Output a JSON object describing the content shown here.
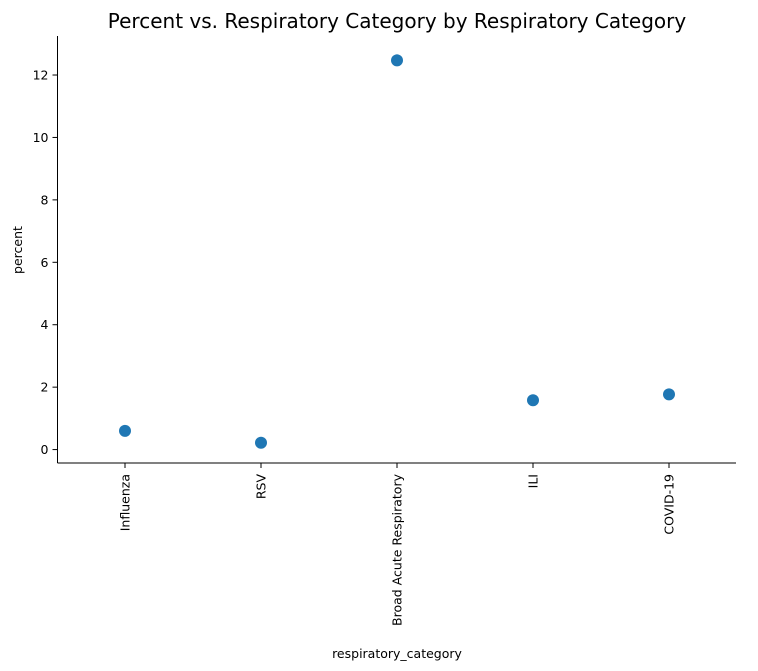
{
  "chart_data": {
    "type": "scatter",
    "title": "Percent vs. Respiratory Category by Respiratory Category",
    "xlabel": "respiratory_category",
    "ylabel": "percent",
    "categories": [
      "Influenza",
      "RSV",
      "Broad Acute Respiratory",
      "ILI",
      "COVID-19"
    ],
    "series": [
      {
        "values": [
          0.6,
          0.22,
          12.47,
          1.58,
          1.77
        ],
        "error_low": [
          0.6,
          0.22,
          12.32,
          1.58,
          1.77
        ],
        "error_high": [
          0.6,
          0.22,
          12.66,
          1.58,
          1.77
        ],
        "color": "#1f77b4"
      }
    ],
    "ylim": [
      -0.43,
      13.25
    ],
    "yticks": [
      0,
      2,
      4,
      6,
      8,
      10,
      12
    ],
    "grid": false,
    "legend": "none"
  }
}
